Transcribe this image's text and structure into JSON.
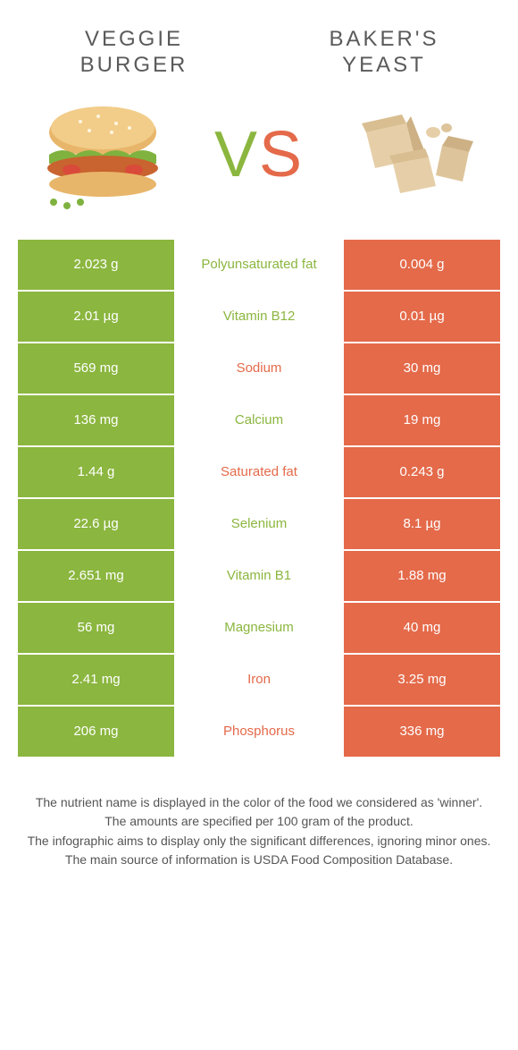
{
  "header": {
    "left_title": "VEGGIE BURGER",
    "right_title": "BAKER'S YEAST",
    "vs_v": "V",
    "vs_s": "S"
  },
  "colors": {
    "green": "#8bb63f",
    "orange": "#e46a4a",
    "title_text": "#5a5a5a",
    "footer_text": "#555555",
    "background": "#ffffff"
  },
  "table": {
    "rows": [
      {
        "left": "2.023 g",
        "label": "Polyunsaturated fat",
        "right": "0.004 g",
        "winner": "green"
      },
      {
        "left": "2.01 µg",
        "label": "Vitamin B12",
        "right": "0.01 µg",
        "winner": "green"
      },
      {
        "left": "569 mg",
        "label": "Sodium",
        "right": "30 mg",
        "winner": "orange"
      },
      {
        "left": "136 mg",
        "label": "Calcium",
        "right": "19 mg",
        "winner": "green"
      },
      {
        "left": "1.44 g",
        "label": "Saturated fat",
        "right": "0.243 g",
        "winner": "orange"
      },
      {
        "left": "22.6 µg",
        "label": "Selenium",
        "right": "8.1 µg",
        "winner": "green"
      },
      {
        "left": "2.651 mg",
        "label": "Vitamin B1",
        "right": "1.88 mg",
        "winner": "green"
      },
      {
        "left": "56 mg",
        "label": "Magnesium",
        "right": "40 mg",
        "winner": "green"
      },
      {
        "left": "2.41 mg",
        "label": "Iron",
        "right": "3.25 mg",
        "winner": "orange"
      },
      {
        "left": "206 mg",
        "label": "Phosphorus",
        "right": "336 mg",
        "winner": "orange"
      }
    ]
  },
  "footer": {
    "line1": "The nutrient name is displayed in the color of the food we considered as 'winner'.",
    "line2": "The amounts are specified per 100 gram of the product.",
    "line3": "The infographic aims to display only the significant differences, ignoring minor ones.",
    "line4": "The main source of information is USDA Food Composition Database."
  }
}
